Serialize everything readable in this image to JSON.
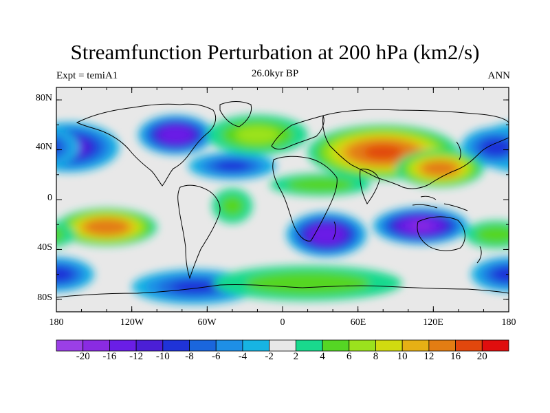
{
  "header": {
    "title": "Streamfunction Perturbation at 200 hPa (km2/s)",
    "left_label": "Expt = temiA1",
    "center_label": "26.0kyr BP",
    "right_label": "ANN"
  },
  "axes": {
    "y_ticks": [
      "80N",
      "40N",
      "0",
      "40S",
      "80S"
    ],
    "x_ticks": [
      "180",
      "120W",
      "60W",
      "0",
      "60E",
      "120E",
      "180"
    ]
  },
  "colorbar": {
    "labels": [
      "-20",
      "-16",
      "-12",
      "-10",
      "-8",
      "-6",
      "-4",
      "-2",
      "2",
      "4",
      "6",
      "8",
      "10",
      "12",
      "16",
      "20"
    ],
    "colors": [
      "#8a2be2",
      "#6a1ee6",
      "#4b1fd6",
      "#1f33d8",
      "#1a66dd",
      "#1e8fe6",
      "#17b4e3",
      "#e8e8e8",
      "#19d98d",
      "#55d624",
      "#9be21d",
      "#d1db10",
      "#e6b015",
      "#e37d13",
      "#e2470d",
      "#e00e0e"
    ]
  },
  "chart_data": {
    "type": "heatmap",
    "title": "Streamfunction Perturbation at 200 hPa (km2/s)",
    "field": "Streamfunction Perturbation",
    "level": "200 hPa",
    "units": "km2/s",
    "xlim": [
      -180,
      180
    ],
    "ylim": [
      -90,
      90
    ],
    "contour_levels": [
      -20,
      -16,
      -12,
      -10,
      -8,
      -6,
      -4,
      -2,
      2,
      4,
      6,
      8,
      10,
      12,
      16,
      20
    ],
    "features": [
      {
        "lon": -85,
        "lat": 52,
        "value": -15,
        "rx": 30,
        "ry": 16
      },
      {
        "lon": -170,
        "lat": 42,
        "value": -12,
        "rx": 40,
        "ry": 20
      },
      {
        "lon": -40,
        "lat": 27,
        "value": -8,
        "rx": 35,
        "ry": 11
      },
      {
        "lon": 35,
        "lat": -28,
        "value": -15,
        "rx": 32,
        "ry": 18
      },
      {
        "lon": 110,
        "lat": -21,
        "value": -16,
        "rx": 38,
        "ry": 15
      },
      {
        "lon": 170,
        "lat": 42,
        "value": -9,
        "rx": 28,
        "ry": 16
      },
      {
        "lon": -70,
        "lat": -70,
        "value": -8,
        "rx": 50,
        "ry": 14
      },
      {
        "lon": 180,
        "lat": -60,
        "value": -9,
        "rx": 30,
        "ry": 14
      },
      {
        "lon": 80,
        "lat": 38,
        "value": 16,
        "rx": 60,
        "ry": 22
      },
      {
        "lon": 125,
        "lat": 25,
        "value": 14,
        "rx": 35,
        "ry": 15
      },
      {
        "lon": -140,
        "lat": -22,
        "value": 15,
        "rx": 40,
        "ry": 15
      },
      {
        "lon": -20,
        "lat": 52,
        "value": 6,
        "rx": 40,
        "ry": 16
      },
      {
        "lon": 30,
        "lat": 12,
        "value": 5,
        "rx": 40,
        "ry": 9
      },
      {
        "lon": 20,
        "lat": -67,
        "value": 5,
        "rx": 75,
        "ry": 14
      },
      {
        "lon": 170,
        "lat": -28,
        "value": 5,
        "rx": 25,
        "ry": 11
      },
      {
        "lon": -40,
        "lat": -5,
        "value": 4,
        "rx": 16,
        "ry": 14
      }
    ]
  }
}
